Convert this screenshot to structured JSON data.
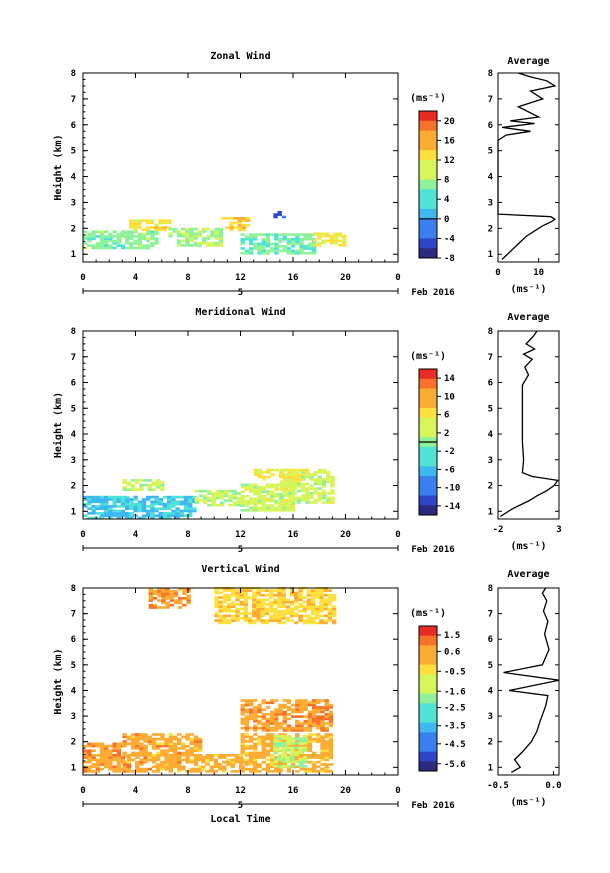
{
  "chart_data": [
    {
      "type": "heatmap",
      "title": "Zonal Wind",
      "ylabel": "Height (km)",
      "ylim": [
        0.7,
        8
      ],
      "yticks": [
        1,
        2,
        3,
        4,
        5,
        6,
        7,
        8
      ],
      "xlim": [
        0,
        24
      ],
      "xticks": [
        "0",
        "4",
        "8",
        "12",
        "16",
        "20",
        "0"
      ],
      "xticks_values": [
        0,
        4,
        8,
        12,
        16,
        20,
        24
      ],
      "day_label": "5",
      "date_label": "Feb 2016",
      "colorbar": {
        "unit_label": "(ms⁻¹)",
        "min": -8,
        "max": 22,
        "tick_labels": [
          "20",
          "16",
          "12",
          "8",
          "4",
          "0",
          "-4",
          "-8"
        ],
        "tick_values": [
          20,
          16,
          12,
          8,
          4,
          0,
          -4,
          -8
        ],
        "contour_line_value": 0
      },
      "regions": [
        {
          "x": [
            0,
            5.5
          ],
          "y": [
            1.2,
            1.9
          ],
          "v": 7
        },
        {
          "x": [
            3.5,
            6.5
          ],
          "y": [
            1.9,
            2.3
          ],
          "v": 13
        },
        {
          "x": [
            6.5,
            10.5
          ],
          "y": [
            1.3,
            2.0
          ],
          "v": 8
        },
        {
          "x": [
            10.5,
            12.5
          ],
          "y": [
            1.9,
            2.4
          ],
          "v": 14
        },
        {
          "x": [
            12,
            17.5
          ],
          "y": [
            1.0,
            1.8
          ],
          "v": 6
        },
        {
          "x": [
            17.5,
            20
          ],
          "y": [
            1.3,
            1.8
          ],
          "v": 12
        },
        {
          "x": [
            14.5,
            15.5
          ],
          "y": [
            2.4,
            2.7
          ],
          "v": -4
        }
      ],
      "profile": {
        "title": "Average",
        "xlim": [
          0,
          15
        ],
        "xticks": [
          "0",
          "10"
        ],
        "xtick_values": [
          0,
          10
        ],
        "xlabel": "(ms⁻¹)",
        "x": [
          1,
          3,
          5,
          7,
          9,
          11,
          13,
          14,
          13,
          0,
          0,
          0,
          2,
          8,
          1,
          9,
          3,
          10,
          5,
          11,
          8,
          14,
          12,
          8,
          5
        ],
        "y": [
          0.8,
          1.1,
          1.4,
          1.7,
          1.9,
          2.1,
          2.25,
          2.35,
          2.45,
          2.55,
          4.0,
          5.4,
          5.6,
          5.75,
          5.9,
          6.05,
          6.15,
          6.3,
          6.7,
          7.0,
          7.3,
          7.5,
          7.7,
          7.85,
          8.0
        ]
      }
    },
    {
      "type": "heatmap",
      "title": "Meridional Wind",
      "ylabel": "Height (km)",
      "ylim": [
        0.7,
        8
      ],
      "yticks": [
        1,
        2,
        3,
        4,
        5,
        6,
        7,
        8
      ],
      "xlim": [
        0,
        24
      ],
      "xticks": [
        "0",
        "4",
        "8",
        "12",
        "16",
        "20",
        "0"
      ],
      "xticks_values": [
        0,
        4,
        8,
        12,
        16,
        20,
        24
      ],
      "day_label": "5",
      "date_label": "Feb 2016",
      "colorbar": {
        "unit_label": "(ms⁻¹)",
        "min": -16,
        "max": 16,
        "tick_labels": [
          "14",
          "10",
          "6",
          "2",
          "-2",
          "-6",
          "-10",
          "-14"
        ],
        "tick_values": [
          14,
          10,
          6,
          2,
          -2,
          -6,
          -10,
          -14
        ],
        "contour_line_value": 0
      },
      "regions": [
        {
          "x": [
            0,
            8.5
          ],
          "y": [
            0.7,
            1.6
          ],
          "v": -5
        },
        {
          "x": [
            3,
            6
          ],
          "y": [
            1.8,
            2.2
          ],
          "v": 3
        },
        {
          "x": [
            8.5,
            12
          ],
          "y": [
            1.2,
            1.8
          ],
          "v": 2
        },
        {
          "x": [
            12,
            16
          ],
          "y": [
            1.0,
            2.0
          ],
          "v": 3
        },
        {
          "x": [
            15,
            19
          ],
          "y": [
            1.3,
            2.6
          ],
          "v": 3
        },
        {
          "x": [
            13,
            17
          ],
          "y": [
            2.2,
            2.6
          ],
          "v": 5
        }
      ],
      "profile": {
        "title": "Average",
        "xlim": [
          -2,
          3
        ],
        "xticks": [
          "-2",
          "3"
        ],
        "xtick_values": [
          -2,
          3
        ],
        "xlabel": "(ms⁻¹)",
        "x": [
          -1.8,
          -0.8,
          0.5,
          1.2,
          2.0,
          2.6,
          2.9,
          0.8,
          0.0,
          0.1,
          0.0,
          0.0,
          0.5,
          0.2,
          0.8,
          0.1,
          1.0,
          0.3,
          0.9,
          1.2
        ],
        "y": [
          0.8,
          1.1,
          1.4,
          1.6,
          1.8,
          2.0,
          2.2,
          2.35,
          2.5,
          3.0,
          3.7,
          5.9,
          6.3,
          6.6,
          6.9,
          7.1,
          7.3,
          7.5,
          7.8,
          8.0
        ]
      }
    },
    {
      "type": "heatmap",
      "title": "Vertical Wind",
      "ylabel": "Height (km)",
      "ylim": [
        0.7,
        8
      ],
      "yticks": [
        1,
        2,
        3,
        4,
        5,
        6,
        7,
        8
      ],
      "xlim": [
        0,
        24
      ],
      "xticks": [
        "0",
        "4",
        "8",
        "12",
        "16",
        "20",
        "0"
      ],
      "xticks_values": [
        0,
        4,
        8,
        12,
        16,
        20,
        24
      ],
      "day_label": "5",
      "date_label": "Feb 2016",
      "xlabel": "Local Time",
      "colorbar": {
        "unit_label": "(ms⁻¹)",
        "min": -6,
        "max": 2,
        "tick_labels": [
          "1.5",
          "0.6",
          "-0.5",
          "-1.6",
          "-2.5",
          "-3.5",
          "-4.5",
          "-5.6"
        ],
        "tick_values": [
          1.5,
          0.6,
          -0.5,
          -1.6,
          -2.5,
          -3.5,
          -4.5,
          -5.6
        ]
      },
      "regions": [
        {
          "x": [
            0,
            3
          ],
          "y": [
            0.8,
            1.9
          ],
          "v": 0.6
        },
        {
          "x": [
            3,
            9
          ],
          "y": [
            0.8,
            2.3
          ],
          "v": 0.4
        },
        {
          "x": [
            9,
            12
          ],
          "y": [
            0.8,
            1.5
          ],
          "v": 0.2
        },
        {
          "x": [
            12,
            19
          ],
          "y": [
            0.8,
            2.3
          ],
          "v": 0.3
        },
        {
          "x": [
            12,
            19
          ],
          "y": [
            2.4,
            3.6
          ],
          "v": 0.6
        },
        {
          "x": [
            5,
            8
          ],
          "y": [
            7.2,
            8.0
          ],
          "v": 0.6
        },
        {
          "x": [
            10,
            19
          ],
          "y": [
            6.6,
            8.0
          ],
          "v": -0.2
        },
        {
          "x": [
            14.5,
            17
          ],
          "y": [
            1.0,
            2.2
          ],
          "v": -1.5
        }
      ],
      "profile": {
        "title": "Average",
        "xlim": [
          -0.5,
          0.05
        ],
        "xticks": [
          "-0.5",
          "0.0"
        ],
        "xtick_values": [
          -0.5,
          0.0
        ],
        "xlabel": "(ms⁻¹)",
        "x": [
          -0.38,
          -0.3,
          -0.35,
          -0.28,
          -0.2,
          -0.15,
          -0.12,
          -0.07,
          -0.05,
          -0.4,
          0.05,
          -0.45,
          -0.1,
          -0.04,
          -0.08,
          -0.05,
          -0.09,
          -0.06,
          -0.1,
          -0.07
        ],
        "y": [
          0.8,
          1.0,
          1.3,
          1.6,
          2.0,
          2.4,
          2.8,
          3.4,
          3.8,
          4.0,
          4.4,
          4.7,
          5.0,
          5.6,
          6.2,
          6.7,
          7.1,
          7.5,
          7.8,
          8.0
        ]
      }
    }
  ]
}
